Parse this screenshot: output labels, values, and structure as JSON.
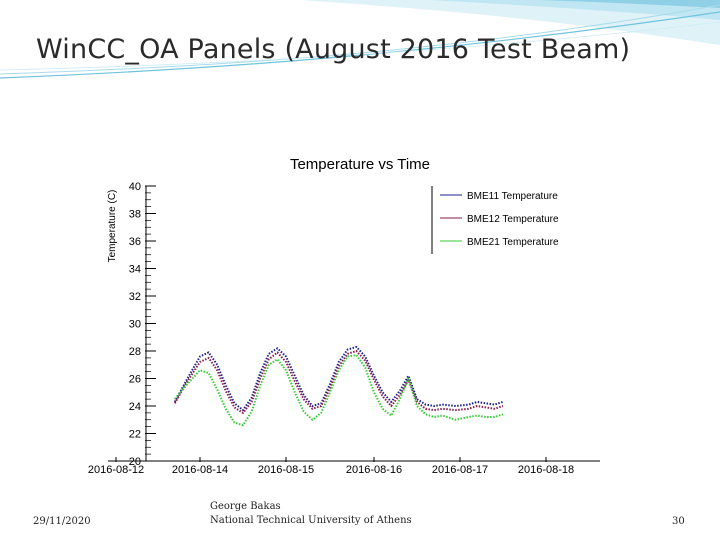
{
  "slide": {
    "title": "WinCC_OA Panels (August 2016 Test Beam)",
    "date": "29/11/2020",
    "author_name": "George Bakas",
    "author_affiliation": "National Technical University of Athens",
    "page_number": "30"
  },
  "colors": {
    "bme11": "#1f1f8f",
    "bme12": "#8b1a4a",
    "bme21": "#33cc33",
    "axis": "#000000",
    "wave_light": "#bfe6f2",
    "wave_mid": "#6fc3dd"
  },
  "chart_data": {
    "type": "line",
    "title": "Temperature vs Time",
    "xlabel": "",
    "ylabel": "Temperature (C)",
    "ylim": [
      20,
      40
    ],
    "y_ticks": [
      "20",
      "22",
      "24",
      "26",
      "28",
      "30",
      "32",
      "34",
      "36",
      "38",
      "40"
    ],
    "x_ticks": [
      "2016-08-12",
      "2016-08-14",
      "2016-08-15",
      "2016-08-16",
      "2016-08-17",
      "2016-08-18"
    ],
    "legend_position": "top-right",
    "x_index_note": "x values are positions along the time axis where 0 = 2016-08-12 tick and 5 = 2016-08-18 tick",
    "series": [
      {
        "name": "BME11 Temperature",
        "color": "#1f1f8f",
        "segments": [
          {
            "x": [
              0.7,
              0.85,
              1.0,
              1.1,
              1.2,
              1.3,
              1.4,
              1.5,
              1.6,
              1.7,
              1.8,
              1.9,
              2.0,
              2.1,
              2.2,
              2.3,
              2.4,
              2.5,
              2.6,
              2.7,
              2.8,
              2.9,
              3.0,
              3.1,
              3.2,
              3.3,
              3.4,
              3.5,
              3.6,
              3.7,
              3.8,
              3.95,
              4.1,
              4.2,
              4.3,
              4.4,
              4.5
            ],
            "y": [
              24.3,
              26.0,
              27.6,
              27.9,
              27.0,
              25.5,
              24.2,
              23.7,
              24.6,
              26.4,
              27.8,
              28.2,
              27.6,
              26.2,
              24.8,
              24.0,
              24.2,
              25.6,
              27.2,
              28.1,
              28.3,
              27.6,
              26.2,
              25.0,
              24.3,
              25.1,
              26.2,
              24.5,
              24.1,
              24.0,
              24.1,
              24.0,
              24.1,
              24.3,
              24.2,
              24.1,
              24.3
            ]
          }
        ]
      },
      {
        "name": "BME12 Temperature",
        "color": "#8b1a4a",
        "segments": [
          {
            "x": [
              0.7,
              0.85,
              1.0,
              1.1,
              1.2,
              1.3,
              1.4,
              1.5,
              1.6,
              1.7,
              1.8,
              1.9,
              2.0,
              2.1,
              2.2,
              2.3,
              2.4,
              2.5,
              2.6,
              2.7,
              2.8,
              2.9,
              3.0,
              3.1,
              3.2,
              3.3,
              3.4,
              3.5,
              3.6,
              3.7,
              3.8,
              3.95,
              4.1,
              4.2,
              4.3,
              4.4,
              4.5
            ],
            "y": [
              24.2,
              25.8,
              27.2,
              27.5,
              26.6,
              25.1,
              23.9,
              23.5,
              24.3,
              26.0,
              27.4,
              27.9,
              27.2,
              25.8,
              24.5,
              23.8,
              24.0,
              25.3,
              26.9,
              27.8,
              28.0,
              27.3,
              25.9,
              24.7,
              24.0,
              24.8,
              25.9,
              24.3,
              23.8,
              23.7,
              23.8,
              23.7,
              23.8,
              24.0,
              23.9,
              23.8,
              24.0
            ]
          }
        ]
      },
      {
        "name": "BME21 Temperature",
        "color": "#33cc33",
        "segments": [
          {
            "x": [
              0.7,
              0.85,
              1.0,
              1.1,
              1.2,
              1.3,
              1.4,
              1.5,
              1.6,
              1.7,
              1.8,
              1.9,
              2.0,
              2.1,
              2.2,
              2.3,
              2.4,
              2.5,
              2.6,
              2.7,
              2.8,
              2.9,
              3.0,
              3.1,
              3.2,
              3.3,
              3.4,
              3.5,
              3.6,
              3.7,
              3.8,
              3.95,
              4.1,
              4.2,
              4.3,
              4.4,
              4.5
            ],
            "y": [
              24.5,
              25.6,
              26.6,
              26.4,
              25.2,
              23.8,
              22.8,
              22.6,
              23.6,
              25.5,
              27.0,
              27.4,
              26.6,
              25.0,
              23.6,
              23.0,
              23.5,
              25.0,
              26.6,
              27.6,
              27.7,
              26.8,
              25.0,
              23.8,
              23.3,
              24.5,
              26.0,
              24.0,
              23.4,
              23.2,
              23.3,
              23.0,
              23.2,
              23.3,
              23.2,
              23.2,
              23.4
            ]
          }
        ]
      }
    ]
  }
}
